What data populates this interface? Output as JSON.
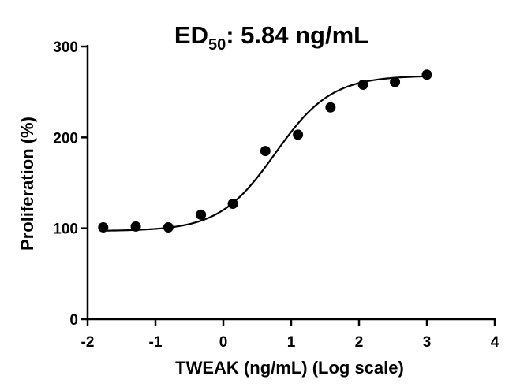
{
  "chart_data": {
    "type": "scatter",
    "title": {
      "main": "ED",
      "subscript": "50",
      "rest": ": 5.84 ng/mL"
    },
    "xlabel": "TWEAK (ng/mL) (Log scale)",
    "ylabel": "Proliferation (%)",
    "xlim": [
      -2,
      4
    ],
    "ylim": [
      0,
      300
    ],
    "xticks": [
      "-2",
      "-1",
      "0",
      "1",
      "2",
      "3",
      "4"
    ],
    "yticks": [
      "0",
      "100",
      "200",
      "300"
    ],
    "grid": false,
    "legend": "none",
    "series": [
      {
        "x": [
          -1.77,
          -1.29,
          -0.81,
          -0.33,
          0.14,
          0.62,
          1.1,
          1.58,
          2.06,
          2.53,
          3.0
        ],
        "y": [
          101,
          102,
          101,
          115,
          127,
          185,
          203,
          233,
          258,
          261,
          269
        ],
        "fit": {
          "type": "4pl",
          "bottom": 97,
          "top": 268,
          "log_ed50": 0.766,
          "hill": 1.05
        },
        "color": "#000000"
      }
    ]
  }
}
